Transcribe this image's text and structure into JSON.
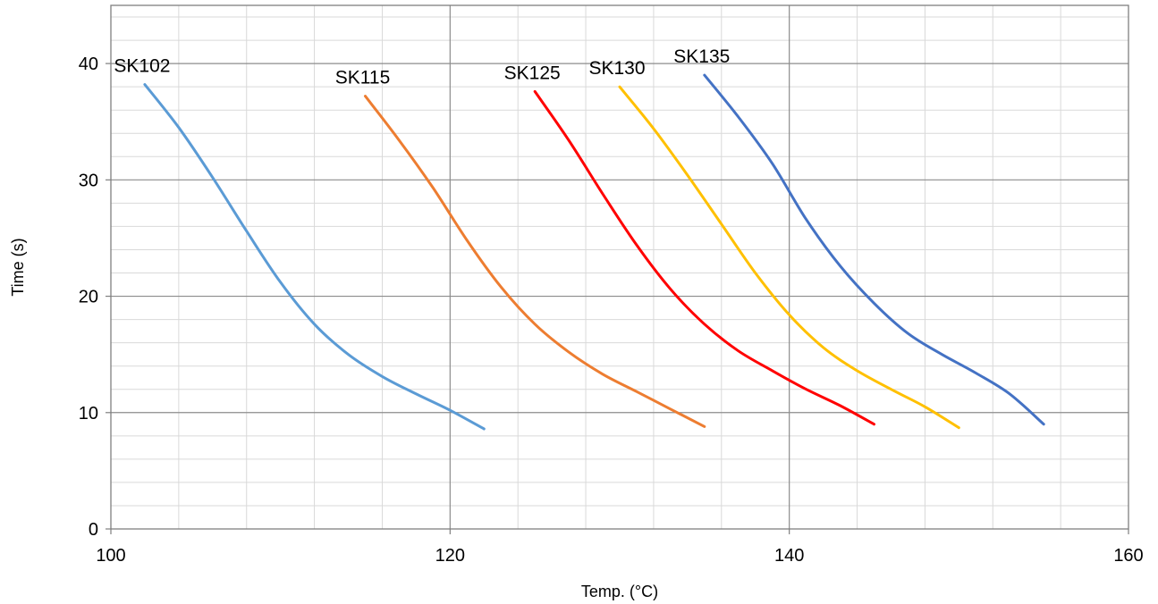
{
  "chart_data": {
    "type": "line",
    "title": "",
    "xlabel": "Temp. (°C)",
    "ylabel": "Time (s)",
    "xlim": [
      100,
      160
    ],
    "ylim": [
      0,
      45
    ],
    "xticks": [
      100,
      120,
      140,
      160
    ],
    "yticks": [
      0,
      10,
      20,
      30,
      40
    ],
    "grid": "major and minor",
    "legend": "none",
    "series": [
      {
        "name": "SK102",
        "color": "#5B9BD5",
        "x": [
          102,
          104,
          106,
          108,
          110,
          112,
          114,
          116,
          118,
          120,
          122
        ],
        "y": [
          38.2,
          34.5,
          30.2,
          25.6,
          21.2,
          17.6,
          15.0,
          13.1,
          11.6,
          10.2,
          8.6
        ]
      },
      {
        "name": "SK115",
        "color": "#ED7D31",
        "x": [
          115,
          117,
          119,
          121,
          123,
          125,
          127,
          129,
          131,
          133,
          135
        ],
        "y": [
          37.2,
          33.4,
          29.3,
          24.8,
          20.8,
          17.6,
          15.2,
          13.3,
          11.8,
          10.3,
          8.8
        ]
      },
      {
        "name": "SK125",
        "color": "#FF0000",
        "x": [
          125,
          127,
          129,
          131,
          133,
          135,
          137,
          139,
          141,
          143,
          145
        ],
        "y": [
          37.6,
          33.4,
          28.8,
          24.4,
          20.6,
          17.6,
          15.3,
          13.6,
          12.0,
          10.6,
          9.0
        ]
      },
      {
        "name": "SK130",
        "color": "#FFC000",
        "x": [
          130,
          132,
          134,
          136,
          138,
          140,
          142,
          144,
          146,
          148,
          150
        ],
        "y": [
          38.0,
          34.4,
          30.4,
          26.2,
          22.0,
          18.4,
          15.6,
          13.6,
          12.0,
          10.5,
          8.7
        ]
      },
      {
        "name": "SK135",
        "color": "#4472C4",
        "x": [
          135,
          137,
          139,
          141,
          143,
          145,
          147,
          149,
          151,
          153,
          155
        ],
        "y": [
          39.0,
          35.4,
          31.4,
          26.6,
          22.6,
          19.4,
          16.8,
          15.0,
          13.4,
          11.6,
          9.0
        ]
      }
    ]
  }
}
